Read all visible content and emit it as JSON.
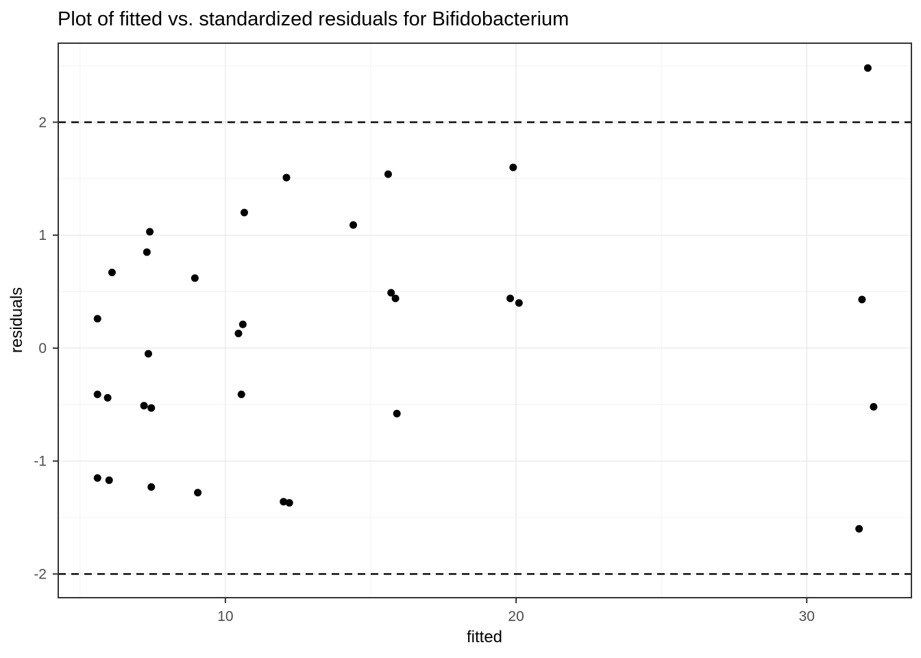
{
  "chart_data": {
    "type": "scatter",
    "title": "Plot of fitted vs. standardized residuals for Bifidobacterium",
    "xlabel": "fitted",
    "ylabel": "residuals",
    "xlim": [
      4.25,
      33.6
    ],
    "ylim": [
      -2.21,
      2.7
    ],
    "x_ticks": [
      10,
      20,
      30
    ],
    "x_minor_ticks": [
      5,
      15,
      25
    ],
    "y_ticks": [
      -2,
      -1,
      0,
      1,
      2
    ],
    "y_minor_ticks": [
      -1.5,
      -0.5,
      0.5,
      1.5,
      2.5
    ],
    "grid": true,
    "legend": "none",
    "reference_lines": [
      {
        "y": 2,
        "style": "dashed"
      },
      {
        "y": -2,
        "style": "dashed"
      }
    ],
    "points": [
      [
        5.6,
        0.26
      ],
      [
        5.6,
        -0.41
      ],
      [
        5.6,
        -1.15
      ],
      [
        5.95,
        -0.44
      ],
      [
        6.0,
        -1.17
      ],
      [
        6.1,
        0.67
      ],
      [
        7.2,
        -0.51
      ],
      [
        7.3,
        0.85
      ],
      [
        7.35,
        -0.05
      ],
      [
        7.4,
        1.03
      ],
      [
        7.45,
        -0.53
      ],
      [
        7.45,
        -1.23
      ],
      [
        8.95,
        0.62
      ],
      [
        9.05,
        -1.28
      ],
      [
        10.45,
        0.13
      ],
      [
        10.55,
        -0.41
      ],
      [
        10.6,
        0.21
      ],
      [
        10.65,
        1.2
      ],
      [
        12.0,
        -1.36
      ],
      [
        12.1,
        1.51
      ],
      [
        12.2,
        -1.37
      ],
      [
        14.4,
        1.09
      ],
      [
        15.6,
        1.54
      ],
      [
        15.7,
        0.49
      ],
      [
        15.85,
        0.44
      ],
      [
        15.9,
        -0.58
      ],
      [
        19.8,
        0.44
      ],
      [
        19.9,
        1.6
      ],
      [
        20.1,
        0.4
      ],
      [
        31.8,
        -1.6
      ],
      [
        31.9,
        0.43
      ],
      [
        32.1,
        2.48
      ],
      [
        32.3,
        -0.52
      ]
    ]
  },
  "colors": {
    "point": "#000000",
    "reference_line": "#000000",
    "grid_major": "#e8e8e8",
    "grid_minor": "#f3f3f3",
    "panel_border": "#333333",
    "tick_mark": "#333333",
    "tick_label": "#4d4d4d",
    "text": "#000000",
    "background": "#ffffff"
  }
}
